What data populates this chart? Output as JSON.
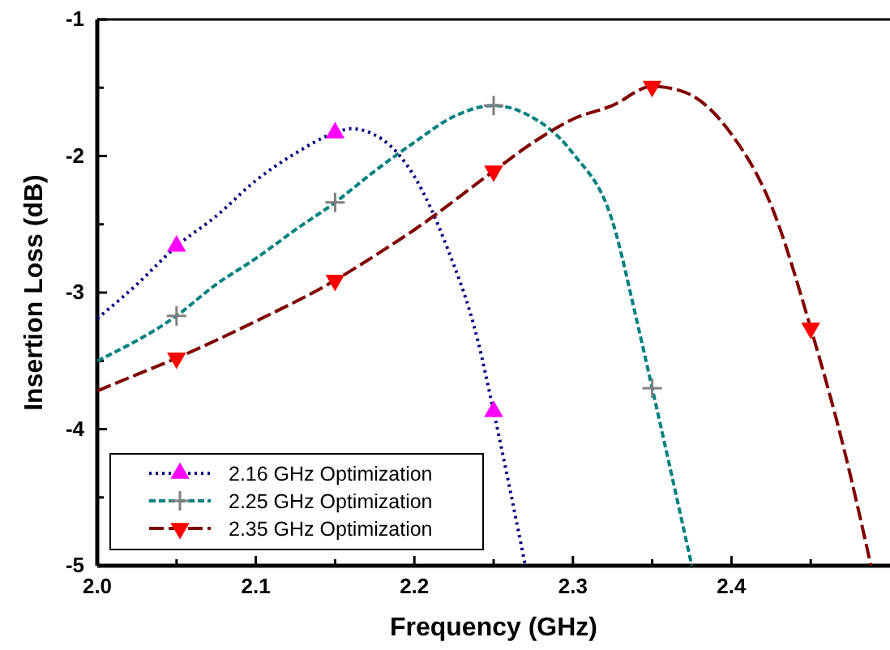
{
  "chart_data": {
    "type": "line",
    "xlabel": "Frequency (GHz)",
    "ylabel": "Insertion Loss (dB)",
    "xlim": [
      2.0,
      2.5
    ],
    "ylim": [
      -5,
      -1
    ],
    "xticks": [
      {
        "value": 2.0,
        "label": "2.0"
      },
      2.1,
      2.2,
      2.3,
      2.4,
      {
        "value": 2.05,
        "label": null
      },
      {
        "value": 2.15,
        "label": null
      },
      {
        "value": 2.25,
        "label": null
      },
      {
        "value": 2.35,
        "label": null
      },
      {
        "value": 2.45,
        "label": null
      }
    ],
    "yticks": [
      -5,
      -4,
      -3,
      -2,
      -1,
      {
        "value": -4.5,
        "label": null
      },
      {
        "value": -3.5,
        "label": null
      },
      {
        "value": -2.5,
        "label": null
      },
      {
        "value": -1.5,
        "label": null
      }
    ],
    "grid": false,
    "legend": "bottom left",
    "series": [
      {
        "name": "2.16 GHz Optimization",
        "color": "#000080",
        "line_style": "dotted",
        "x": [
          2.0,
          2.025,
          2.05,
          2.075,
          2.1,
          2.125,
          2.15,
          2.16,
          2.18,
          2.2,
          2.22,
          2.24,
          2.25,
          2.27
        ],
        "values": [
          -3.19,
          -2.94,
          -2.66,
          -2.44,
          -2.18,
          -1.98,
          -1.83,
          -1.8,
          -1.88,
          -2.15,
          -2.65,
          -3.35,
          -3.87,
          -5.0
        ]
      },
      {
        "type": "scatter",
        "color": "#ff00ff",
        "marker": "triangle",
        "x": [
          2.05,
          2.15,
          2.25
        ],
        "values": [
          -2.66,
          -1.83,
          -3.87
        ]
      },
      {
        "name": "2.25 GHz Optimization",
        "color": "#008080",
        "line_style": "dashed",
        "x": [
          2.0,
          2.05,
          2.075,
          2.1,
          2.125,
          2.15,
          2.175,
          2.2,
          2.225,
          2.25,
          2.27,
          2.3,
          2.325,
          2.34,
          2.35,
          2.375
        ],
        "values": [
          -3.5,
          -3.17,
          -2.94,
          -2.75,
          -2.54,
          -2.34,
          -2.11,
          -1.9,
          -1.71,
          -1.63,
          -1.69,
          -1.98,
          -2.48,
          -3.19,
          -3.7,
          -5.0
        ]
      },
      {
        "type": "scatter",
        "color": "#808080",
        "marker": "cross",
        "x": [
          2.05,
          2.15,
          2.25,
          2.35
        ],
        "values": [
          -3.17,
          -2.34,
          -1.63,
          -3.7
        ]
      },
      {
        "name": "2.35 GHz Optimization",
        "color": "#800000",
        "line_style": "dashed",
        "x": [
          2.0,
          2.025,
          2.05,
          2.1,
          2.15,
          2.175,
          2.2,
          2.25,
          2.275,
          2.3,
          2.325,
          2.35,
          2.37,
          2.4,
          2.425,
          2.45,
          2.47,
          2.488
        ],
        "values": [
          -3.72,
          -3.6,
          -3.48,
          -3.21,
          -2.91,
          -2.73,
          -2.54,
          -2.11,
          -1.9,
          -1.73,
          -1.63,
          -1.49,
          -1.53,
          -1.84,
          -2.36,
          -3.26,
          -4.1,
          -5.0
        ]
      },
      {
        "type": "scatter",
        "color": "#ff0000",
        "marker": "triangle-down",
        "x": [
          2.05,
          2.15,
          2.25,
          2.35,
          2.45
        ],
        "values": [
          -3.48,
          -2.91,
          -2.11,
          -1.49,
          -3.26
        ]
      }
    ]
  }
}
